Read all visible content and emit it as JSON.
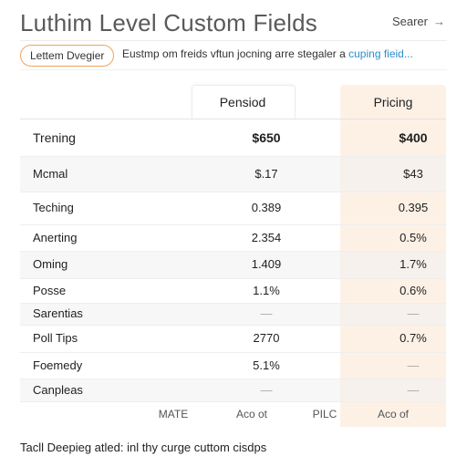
{
  "header": {
    "title": "Luthim Level Custom Fields",
    "search_label": "Searer",
    "search_arrow": "→"
  },
  "filter": {
    "pill_label": "Lettem Dvegier",
    "subtitle": "Eustmp om freids vftun jocning arre stegaler a ",
    "subtitle_link": "cuping fieid..."
  },
  "table": {
    "columns": [
      "Pensiod",
      "Pricing"
    ],
    "rows": [
      {
        "label": "Trening",
        "v1": "$650",
        "v2": "$400",
        "bold": true,
        "shade": false
      },
      {
        "label": "Mcmal",
        "v1": "$.17",
        "v2": "$43",
        "bold": false,
        "shade": true
      },
      {
        "label": "Teching",
        "v1": "0.389",
        "v2": "0.395",
        "bold": false,
        "shade": false
      },
      {
        "label": "Anerting",
        "v1": "2.354",
        "v2": "0.5%",
        "bold": false,
        "shade": false
      },
      {
        "label": "Oming",
        "v1": "1.409",
        "v2": "1.7%",
        "bold": false,
        "shade": true
      },
      {
        "label": "Posse",
        "v1": "1.1%",
        "v2": "0.6%",
        "bold": false,
        "shade": false
      },
      {
        "label": "Sarentias",
        "v1": "—",
        "v2": "—",
        "bold": false,
        "shade": true
      },
      {
        "label": "Poll Tips",
        "v1": "2770",
        "v2": "0.7%",
        "bold": false,
        "shade": false
      },
      {
        "label": "Foemedy",
        "v1": "5.1%",
        "v2": "—",
        "bold": false,
        "shade": false
      },
      {
        "label": "Canpleas",
        "v1": "—",
        "v2": "—",
        "bold": false,
        "shade": true
      }
    ],
    "footer": [
      "MATE",
      "Aco ot",
      "PILC",
      "Aco of"
    ]
  },
  "note": "Tacll Deepieg atled: inl thy curge cuttom cisdps"
}
